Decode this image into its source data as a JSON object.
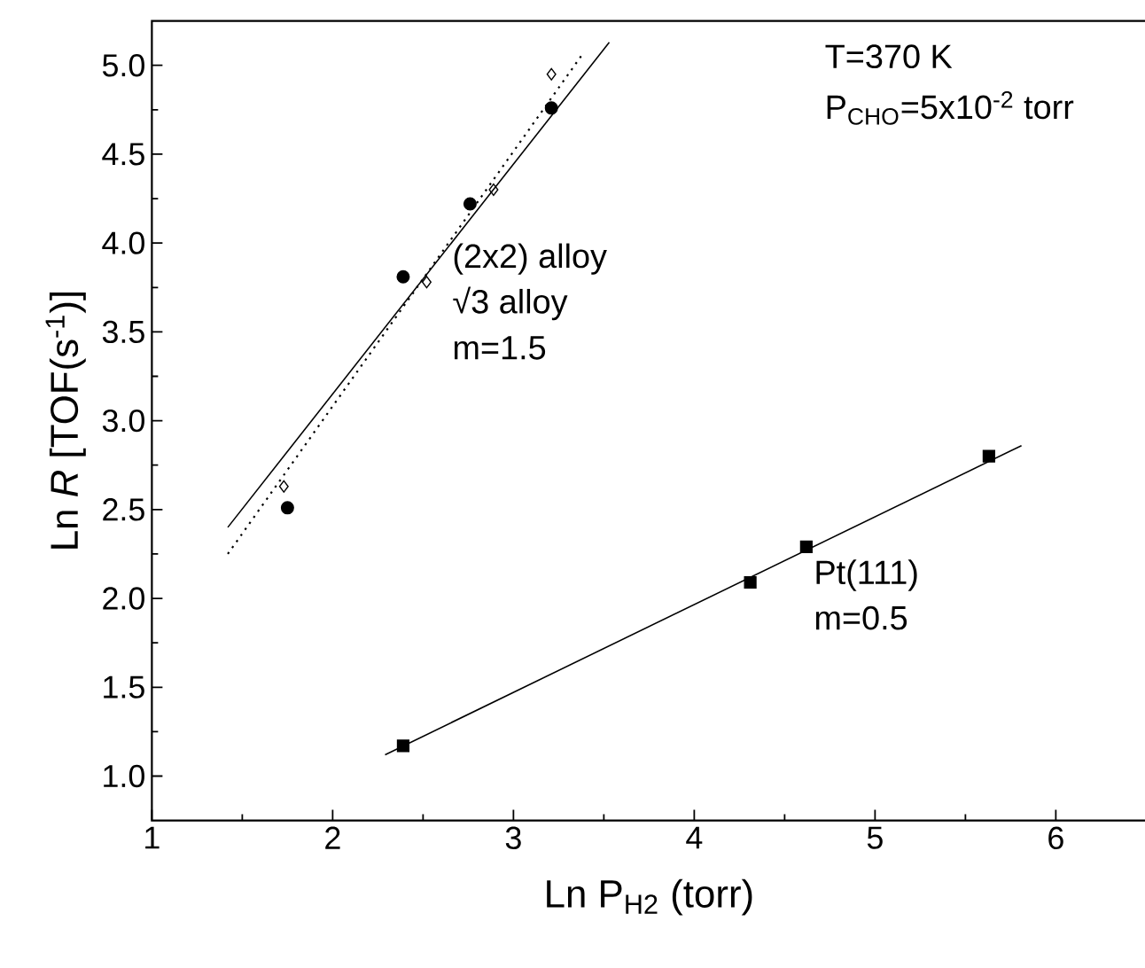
{
  "chart_data": {
    "type": "scatter",
    "xlabel": "Ln P$_{H2}$ (torr)",
    "ylabel": "Ln *R* [TOF(s$^{-1}$)]",
    "xlim": [
      1,
      6.5
    ],
    "ylim": [
      0.75,
      5.25
    ],
    "xticks": [
      1,
      2,
      3,
      4,
      5,
      6
    ],
    "yticks": [
      {
        "value": 1,
        "label": "1.0"
      },
      {
        "value": 1.5,
        "label": "1.5"
      },
      {
        "value": 2,
        "label": "2.0"
      },
      {
        "value": 2.5,
        "label": "2.5"
      },
      {
        "value": 3,
        "label": "3.0"
      },
      {
        "value": 3.5,
        "label": "3.5"
      },
      {
        "value": 4,
        "label": "4.0"
      },
      {
        "value": 4.5,
        "label": "4.5"
      },
      {
        "value": 5,
        "label": "5.0"
      }
    ],
    "series": [
      {
        "marker": "circle",
        "color": "#000000",
        "x": [
          1.75,
          2.39,
          2.76,
          3.21
        ],
        "values": [
          2.51,
          3.81,
          4.22,
          4.76
        ]
      },
      {
        "marker": "diamond",
        "color": "#000000",
        "x": [
          1.73,
          2.52,
          2.89,
          3.21
        ],
        "values": [
          2.63,
          3.78,
          4.3,
          4.95
        ]
      },
      {
        "marker": "square",
        "color": "#000000",
        "x": [
          2.39,
          4.31,
          4.62,
          5.63
        ],
        "values": [
          1.17,
          2.09,
          2.29,
          2.8
        ]
      },
      {
        "type": "line",
        "line_style": "solid",
        "color": "#000000",
        "x": [
          1.42,
          3.53
        ],
        "values": [
          2.4,
          5.13
        ]
      },
      {
        "type": "line",
        "line_style": "dotted",
        "color": "#000000",
        "x": [
          1.42,
          3.38
        ],
        "values": [
          2.25,
          5.06
        ]
      },
      {
        "type": "line",
        "line_style": "solid",
        "color": "#000000",
        "x": [
          2.29,
          5.81
        ],
        "values": [
          1.12,
          2.86
        ]
      }
    ],
    "annotations": [
      "(2x2) alloy",
      "√3 alloy",
      "m=1.5",
      "Pt(111)",
      "m=0.5",
      "T=370 K",
      "P$_{CHO}$=5x10$^{-2}$ torr"
    ]
  }
}
